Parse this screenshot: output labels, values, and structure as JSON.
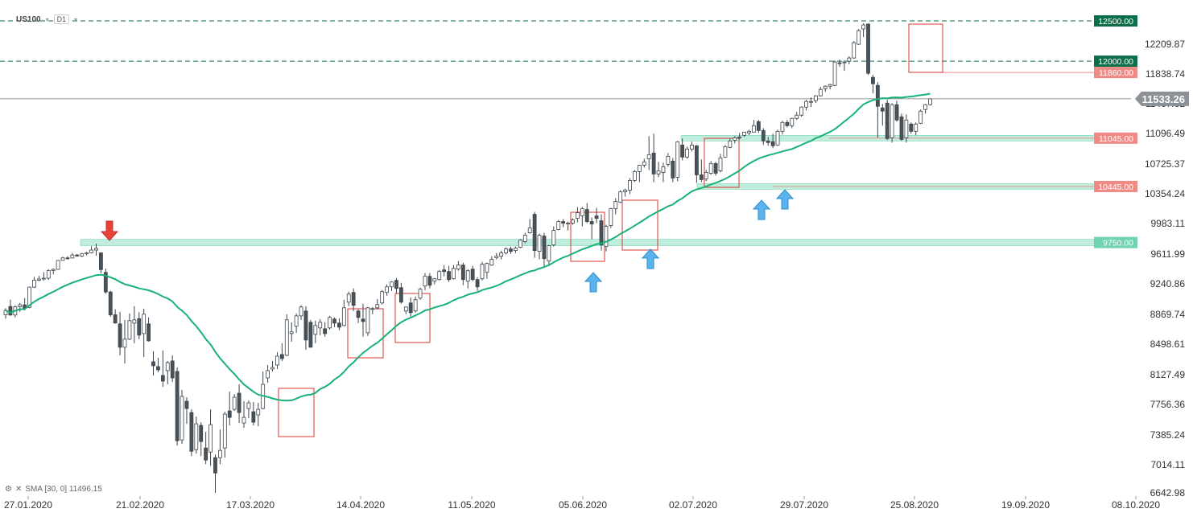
{
  "header": {
    "symbol": "US100",
    "timeframe": "D1"
  },
  "indicator": {
    "label": "SMA [30, 0] 11496.15"
  },
  "chart_data": {
    "type": "candlestick",
    "title": "US100",
    "timeframe": "D1",
    "ylim": [
      6642.98,
      12581.0
    ],
    "x_axis_labels": [
      "27.01.2020",
      "21.02.2020",
      "17.03.2020",
      "14.04.2020",
      "11.05.2020",
      "05.06.2020",
      "02.07.2020",
      "29.07.2020",
      "25.08.2020",
      "19.09.2020",
      "08.10.2020"
    ],
    "y_axis_labels": [
      "12209.87",
      "11838.74",
      "11467.62",
      "11096.49",
      "10725.37",
      "10354.24",
      "9983.11",
      "9611.99",
      "9240.86",
      "8869.74",
      "8498.61",
      "8127.49",
      "7756.36",
      "7385.24",
      "7014.11",
      "6642.98"
    ],
    "current_price": "11533.26",
    "level_labels": [
      {
        "value": "12500.00",
        "color": "#0d6e4a"
      },
      {
        "value": "12000.00",
        "color": "#0d6e4a"
      },
      {
        "value": "11860.00",
        "color": "#ef8a85"
      },
      {
        "value": "11045.00",
        "color": "#ef8a85"
      },
      {
        "value": "10445.00",
        "color": "#ef8a85"
      },
      {
        "value": "9750.00",
        "color": "#6fd3b0"
      }
    ],
    "colors": {
      "bull": "#ffffff",
      "bear": "#4a5259",
      "sma": "#19b276",
      "box": "#d9352f",
      "zone": "#b4ebd8",
      "arrow_up": "#5ab3ec",
      "arrow_down": "#e8433b"
    },
    "sma_period": 30,
    "sma_value": "11496.15",
    "candles": [
      {
        "o": 8853,
        "h": 8935,
        "l": 8805,
        "c": 8908
      },
      {
        "o": 8956,
        "h": 9040,
        "l": 8842,
        "c": 8850
      },
      {
        "o": 8850,
        "h": 8970,
        "l": 8820,
        "c": 8951
      },
      {
        "o": 8952,
        "h": 9001,
        "l": 8890,
        "c": 8977
      },
      {
        "o": 8976,
        "h": 9061,
        "l": 8907,
        "c": 8935
      },
      {
        "o": 8945,
        "h": 9203,
        "l": 8935,
        "c": 9196
      },
      {
        "o": 9196,
        "h": 9324,
        "l": 9186,
        "c": 9283
      },
      {
        "o": 9283,
        "h": 9337,
        "l": 9269,
        "c": 9297
      },
      {
        "o": 9297,
        "h": 9382,
        "l": 9278,
        "c": 9307
      },
      {
        "o": 9307,
        "h": 9419,
        "l": 9287,
        "c": 9401
      },
      {
        "o": 9401,
        "h": 9427,
        "l": 9354,
        "c": 9417
      },
      {
        "o": 9417,
        "h": 9529,
        "l": 9411,
        "c": 9528
      },
      {
        "o": 9528,
        "h": 9573,
        "l": 9528,
        "c": 9559
      },
      {
        "o": 9559,
        "h": 9580,
        "l": 9537,
        "c": 9558
      },
      {
        "o": 9558,
        "h": 9620,
        "l": 9552,
        "c": 9595
      },
      {
        "o": 9595,
        "h": 9608,
        "l": 9574,
        "c": 9582
      },
      {
        "o": 9582,
        "h": 9619,
        "l": 9570,
        "c": 9610
      },
      {
        "o": 9610,
        "h": 9634,
        "l": 9589,
        "c": 9622
      },
      {
        "o": 9623,
        "h": 9704,
        "l": 9615,
        "c": 9656
      },
      {
        "o": 9656,
        "h": 9737,
        "l": 9586,
        "c": 9677
      },
      {
        "o": 9622,
        "h": 9622,
        "l": 9367,
        "c": 9414
      },
      {
        "o": 9379,
        "h": 9427,
        "l": 9114,
        "c": 9136
      },
      {
        "o": 9136,
        "h": 9152,
        "l": 8828,
        "c": 8853
      },
      {
        "o": 8853,
        "h": 8923,
        "l": 8742,
        "c": 8751
      },
      {
        "o": 8740,
        "h": 8890,
        "l": 8350,
        "c": 8450
      },
      {
        "o": 8450,
        "h": 8790,
        "l": 8250,
        "c": 8550
      },
      {
        "o": 8550,
        "h": 8870,
        "l": 8540,
        "c": 8780
      },
      {
        "o": 8750,
        "h": 8960,
        "l": 8500,
        "c": 8790
      },
      {
        "o": 8805,
        "h": 8885,
        "l": 8550,
        "c": 8600
      },
      {
        "o": 8620,
        "h": 8930,
        "l": 8330,
        "c": 8860
      },
      {
        "o": 8740,
        "h": 8820,
        "l": 8520,
        "c": 8530
      },
      {
        "o": 8270,
        "h": 8400,
        "l": 8100,
        "c": 8220
      },
      {
        "o": 8210,
        "h": 8320,
        "l": 8140,
        "c": 8170
      },
      {
        "o": 8100,
        "h": 8410,
        "l": 7960,
        "c": 8030
      },
      {
        "o": 8160,
        "h": 8280,
        "l": 7990,
        "c": 8260
      },
      {
        "o": 8280,
        "h": 8350,
        "l": 8020,
        "c": 8070
      },
      {
        "o": 8150,
        "h": 8200,
        "l": 7230,
        "c": 7290
      },
      {
        "o": 7300,
        "h": 7920,
        "l": 7250,
        "c": 7840
      },
      {
        "o": 7780,
        "h": 7830,
        "l": 7500,
        "c": 7690
      },
      {
        "o": 7640,
        "h": 7680,
        "l": 7100,
        "c": 7160
      },
      {
        "o": 7180,
        "h": 7590,
        "l": 7130,
        "c": 7500
      },
      {
        "o": 7480,
        "h": 7520,
        "l": 7100,
        "c": 7280
      },
      {
        "o": 7200,
        "h": 7400,
        "l": 7000,
        "c": 7050
      },
      {
        "o": 7150,
        "h": 7680,
        "l": 6980,
        "c": 7490
      },
      {
        "o": 7080,
        "h": 7120,
        "l": 6643,
        "c": 6890
      },
      {
        "o": 7080,
        "h": 7430,
        "l": 7000,
        "c": 7170
      },
      {
        "o": 7200,
        "h": 7650,
        "l": 7080,
        "c": 7620
      },
      {
        "o": 7660,
        "h": 7900,
        "l": 7480,
        "c": 7580
      },
      {
        "o": 7680,
        "h": 7870,
        "l": 7660,
        "c": 7830
      },
      {
        "o": 7880,
        "h": 7990,
        "l": 7510,
        "c": 7640
      },
      {
        "o": 7510,
        "h": 7780,
        "l": 7450,
        "c": 7580
      },
      {
        "o": 7690,
        "h": 7790,
        "l": 7570,
        "c": 7760
      },
      {
        "o": 7650,
        "h": 7770,
        "l": 7480,
        "c": 7520
      },
      {
        "o": 7610,
        "h": 7760,
        "l": 7470,
        "c": 7680
      },
      {
        "o": 7690,
        "h": 8150,
        "l": 7680,
        "c": 7990
      },
      {
        "o": 8070,
        "h": 8230,
        "l": 8010,
        "c": 8160
      },
      {
        "o": 8180,
        "h": 8280,
        "l": 8150,
        "c": 8200
      },
      {
        "o": 8230,
        "h": 8390,
        "l": 8180,
        "c": 8340
      },
      {
        "o": 8360,
        "h": 8500,
        "l": 8280,
        "c": 8310
      },
      {
        "o": 8350,
        "h": 8860,
        "l": 8340,
        "c": 8790
      },
      {
        "o": 8620,
        "h": 8760,
        "l": 8520,
        "c": 8640
      },
      {
        "o": 8710,
        "h": 8870,
        "l": 8630,
        "c": 8840
      },
      {
        "o": 8840,
        "h": 8970,
        "l": 8790,
        "c": 8950
      },
      {
        "o": 8900,
        "h": 8960,
        "l": 8420,
        "c": 8540
      },
      {
        "o": 8760,
        "h": 8790,
        "l": 8450,
        "c": 8450
      },
      {
        "o": 8610,
        "h": 8780,
        "l": 8500,
        "c": 8720
      },
      {
        "o": 8690,
        "h": 8800,
        "l": 8600,
        "c": 8760
      },
      {
        "o": 8680,
        "h": 8760,
        "l": 8580,
        "c": 8620
      },
      {
        "o": 8690,
        "h": 8840,
        "l": 8670,
        "c": 8820
      },
      {
        "o": 8800,
        "h": 8820,
        "l": 8700,
        "c": 8750
      },
      {
        "o": 8750,
        "h": 8810,
        "l": 8660,
        "c": 8700
      },
      {
        "o": 8720,
        "h": 9040,
        "l": 8710,
        "c": 8940
      },
      {
        "o": 9010,
        "h": 9140,
        "l": 8960,
        "c": 9110
      },
      {
        "o": 9130,
        "h": 9180,
        "l": 8900,
        "c": 8970
      },
      {
        "o": 8900,
        "h": 8920,
        "l": 8750,
        "c": 8820
      },
      {
        "o": 8800,
        "h": 8990,
        "l": 8580,
        "c": 8770
      },
      {
        "o": 8630,
        "h": 8950,
        "l": 8590,
        "c": 8940
      },
      {
        "o": 8920,
        "h": 8950,
        "l": 8860,
        "c": 8930
      },
      {
        "o": 8940,
        "h": 9050,
        "l": 8920,
        "c": 8980
      },
      {
        "o": 9000,
        "h": 9160,
        "l": 8980,
        "c": 9140
      },
      {
        "o": 9130,
        "h": 9230,
        "l": 9090,
        "c": 9200
      },
      {
        "o": 9200,
        "h": 9270,
        "l": 9150,
        "c": 9260
      },
      {
        "o": 9280,
        "h": 9310,
        "l": 9120,
        "c": 9180
      },
      {
        "o": 9190,
        "h": 9250,
        "l": 8990,
        "c": 9010
      },
      {
        "o": 8900,
        "h": 8950,
        "l": 8860,
        "c": 8950
      },
      {
        "o": 9000,
        "h": 9070,
        "l": 8830,
        "c": 8880
      },
      {
        "o": 8900,
        "h": 9080,
        "l": 8880,
        "c": 9040
      },
      {
        "o": 9060,
        "h": 9190,
        "l": 9040,
        "c": 9170
      },
      {
        "o": 9210,
        "h": 9370,
        "l": 9160,
        "c": 9330
      },
      {
        "o": 9330,
        "h": 9370,
        "l": 9180,
        "c": 9220
      },
      {
        "o": 9270,
        "h": 9310,
        "l": 9230,
        "c": 9300
      },
      {
        "o": 9290,
        "h": 9410,
        "l": 9280,
        "c": 9390
      },
      {
        "o": 9410,
        "h": 9470,
        "l": 9330,
        "c": 9390
      },
      {
        "o": 9390,
        "h": 9460,
        "l": 9260,
        "c": 9290
      },
      {
        "o": 9300,
        "h": 9470,
        "l": 9290,
        "c": 9430
      },
      {
        "o": 9420,
        "h": 9520,
        "l": 9400,
        "c": 9470
      },
      {
        "o": 9470,
        "h": 9500,
        "l": 9220,
        "c": 9290
      },
      {
        "o": 9270,
        "h": 9420,
        "l": 9180,
        "c": 9400
      },
      {
        "o": 9420,
        "h": 9460,
        "l": 9270,
        "c": 9290
      },
      {
        "o": 9290,
        "h": 9320,
        "l": 9150,
        "c": 9200
      },
      {
        "o": 9300,
        "h": 9510,
        "l": 9280,
        "c": 9480
      },
      {
        "o": 9380,
        "h": 9500,
        "l": 9300,
        "c": 9490
      },
      {
        "o": 9470,
        "h": 9580,
        "l": 9460,
        "c": 9540
      },
      {
        "o": 9560,
        "h": 9620,
        "l": 9540,
        "c": 9580
      },
      {
        "o": 9580,
        "h": 9650,
        "l": 9540,
        "c": 9620
      },
      {
        "o": 9620,
        "h": 9690,
        "l": 9600,
        "c": 9670
      },
      {
        "o": 9670,
        "h": 9700,
        "l": 9610,
        "c": 9640
      },
      {
        "o": 9650,
        "h": 9700,
        "l": 9620,
        "c": 9680
      },
      {
        "o": 9690,
        "h": 9790,
        "l": 9680,
        "c": 9780
      },
      {
        "o": 9760,
        "h": 9870,
        "l": 9740,
        "c": 9840
      },
      {
        "o": 9870,
        "h": 10040,
        "l": 9860,
        "c": 9930
      },
      {
        "o": 10100,
        "h": 10130,
        "l": 9560,
        "c": 9650
      },
      {
        "o": 9640,
        "h": 9860,
        "l": 9540,
        "c": 9840
      },
      {
        "o": 9830,
        "h": 9870,
        "l": 9440,
        "c": 9550
      },
      {
        "o": 9520,
        "h": 9720,
        "l": 9460,
        "c": 9710
      },
      {
        "o": 9720,
        "h": 9950,
        "l": 9700,
        "c": 9900
      },
      {
        "o": 9910,
        "h": 10030,
        "l": 9900,
        "c": 10010
      },
      {
        "o": 10010,
        "h": 10040,
        "l": 9940,
        "c": 9990
      },
      {
        "o": 9980,
        "h": 10010,
        "l": 9900,
        "c": 9990
      },
      {
        "o": 9990,
        "h": 10050,
        "l": 9970,
        "c": 10030
      },
      {
        "o": 10050,
        "h": 10190,
        "l": 10000,
        "c": 10120
      },
      {
        "o": 10080,
        "h": 10190,
        "l": 9950,
        "c": 10170
      },
      {
        "o": 10160,
        "h": 10240,
        "l": 9990,
        "c": 10010
      },
      {
        "o": 10010,
        "h": 10060,
        "l": 9790,
        "c": 9980
      },
      {
        "o": 10080,
        "h": 10180,
        "l": 9990,
        "c": 10050
      },
      {
        "o": 10020,
        "h": 10100,
        "l": 9650,
        "c": 9720
      },
      {
        "o": 9700,
        "h": 9970,
        "l": 9640,
        "c": 9950
      },
      {
        "o": 9960,
        "h": 10180,
        "l": 9930,
        "c": 10170
      },
      {
        "o": 10170,
        "h": 10300,
        "l": 10100,
        "c": 10260
      },
      {
        "o": 10250,
        "h": 10400,
        "l": 10240,
        "c": 10380
      },
      {
        "o": 10380,
        "h": 10420,
        "l": 10320,
        "c": 10400
      },
      {
        "o": 10400,
        "h": 10550,
        "l": 10350,
        "c": 10520
      },
      {
        "o": 10520,
        "h": 10650,
        "l": 10500,
        "c": 10630
      },
      {
        "o": 10630,
        "h": 10700,
        "l": 10500,
        "c": 10710
      },
      {
        "o": 10710,
        "h": 10790,
        "l": 10680,
        "c": 10750
      },
      {
        "o": 10790,
        "h": 11070,
        "l": 10650,
        "c": 10840
      },
      {
        "o": 10860,
        "h": 11100,
        "l": 10500,
        "c": 10600
      },
      {
        "o": 10600,
        "h": 10750,
        "l": 10560,
        "c": 10640
      },
      {
        "o": 10620,
        "h": 10740,
        "l": 10500,
        "c": 10690
      },
      {
        "o": 10720,
        "h": 10860,
        "l": 10690,
        "c": 10820
      },
      {
        "o": 10760,
        "h": 10800,
        "l": 10500,
        "c": 10550
      },
      {
        "o": 10560,
        "h": 11010,
        "l": 10510,
        "c": 11000
      },
      {
        "o": 10960,
        "h": 11040,
        "l": 10770,
        "c": 10810
      },
      {
        "o": 10810,
        "h": 10940,
        "l": 10790,
        "c": 10910
      },
      {
        "o": 10910,
        "h": 11000,
        "l": 10880,
        "c": 10960
      },
      {
        "o": 10950,
        "h": 10960,
        "l": 10490,
        "c": 10590
      },
      {
        "o": 10590,
        "h": 10780,
        "l": 10500,
        "c": 10530
      },
      {
        "o": 10540,
        "h": 10650,
        "l": 10510,
        "c": 10620
      },
      {
        "o": 10610,
        "h": 10760,
        "l": 10590,
        "c": 10730
      },
      {
        "o": 10730,
        "h": 10750,
        "l": 10580,
        "c": 10610
      },
      {
        "o": 10640,
        "h": 10850,
        "l": 10620,
        "c": 10800
      },
      {
        "o": 10810,
        "h": 10960,
        "l": 10800,
        "c": 10940
      },
      {
        "o": 10930,
        "h": 11040,
        "l": 10920,
        "c": 11010
      },
      {
        "o": 11020,
        "h": 11070,
        "l": 10980,
        "c": 11050
      },
      {
        "o": 11050,
        "h": 11110,
        "l": 11030,
        "c": 11060
      },
      {
        "o": 11080,
        "h": 11120,
        "l": 11060,
        "c": 11120
      },
      {
        "o": 11110,
        "h": 11150,
        "l": 11080,
        "c": 11130
      },
      {
        "o": 11120,
        "h": 11270,
        "l": 11120,
        "c": 11200
      },
      {
        "o": 11250,
        "h": 11270,
        "l": 11110,
        "c": 11140
      },
      {
        "o": 11140,
        "h": 11170,
        "l": 10960,
        "c": 11010
      },
      {
        "o": 11010,
        "h": 11060,
        "l": 10950,
        "c": 10990
      },
      {
        "o": 11000,
        "h": 11100,
        "l": 10920,
        "c": 10950
      },
      {
        "o": 10960,
        "h": 11150,
        "l": 10950,
        "c": 11130
      },
      {
        "o": 11130,
        "h": 11260,
        "l": 11090,
        "c": 11240
      },
      {
        "o": 11240,
        "h": 11270,
        "l": 11180,
        "c": 11200
      },
      {
        "o": 11200,
        "h": 11300,
        "l": 11170,
        "c": 11290
      },
      {
        "o": 11290,
        "h": 11370,
        "l": 11270,
        "c": 11330
      },
      {
        "o": 11330,
        "h": 11440,
        "l": 11310,
        "c": 11430
      },
      {
        "o": 11430,
        "h": 11520,
        "l": 11390,
        "c": 11500
      },
      {
        "o": 11500,
        "h": 11550,
        "l": 11430,
        "c": 11500
      },
      {
        "o": 11510,
        "h": 11580,
        "l": 11480,
        "c": 11570
      },
      {
        "o": 11570,
        "h": 11680,
        "l": 11560,
        "c": 11650
      },
      {
        "o": 11660,
        "h": 11700,
        "l": 11620,
        "c": 11690
      },
      {
        "o": 11690,
        "h": 11720,
        "l": 11650,
        "c": 11710
      },
      {
        "o": 11700,
        "h": 12010,
        "l": 11690,
        "c": 11990
      },
      {
        "o": 11980,
        "h": 12020,
        "l": 11930,
        "c": 11970
      },
      {
        "o": 11980,
        "h": 12010,
        "l": 11880,
        "c": 11990
      },
      {
        "o": 12000,
        "h": 12060,
        "l": 11960,
        "c": 12040
      },
      {
        "o": 12040,
        "h": 12250,
        "l": 12030,
        "c": 12230
      },
      {
        "o": 12210,
        "h": 12400,
        "l": 12200,
        "c": 12380
      },
      {
        "o": 12400,
        "h": 12470,
        "l": 12300,
        "c": 12450
      },
      {
        "o": 12460,
        "h": 12470,
        "l": 11830,
        "c": 11850
      },
      {
        "o": 11800,
        "h": 11830,
        "l": 11600,
        "c": 11720
      },
      {
        "o": 11700,
        "h": 11740,
        "l": 11050,
        "c": 11440
      },
      {
        "o": 11420,
        "h": 11470,
        "l": 11200,
        "c": 11380
      },
      {
        "o": 11480,
        "h": 11520,
        "l": 11020,
        "c": 11040
      },
      {
        "o": 11050,
        "h": 11480,
        "l": 10990,
        "c": 11460
      },
      {
        "o": 11460,
        "h": 11510,
        "l": 11250,
        "c": 11270
      },
      {
        "o": 11310,
        "h": 11350,
        "l": 11010,
        "c": 11030
      },
      {
        "o": 11050,
        "h": 11340,
        "l": 10990,
        "c": 11270
      },
      {
        "o": 11220,
        "h": 11240,
        "l": 11100,
        "c": 11130
      },
      {
        "o": 11130,
        "h": 11240,
        "l": 11080,
        "c": 11220
      },
      {
        "o": 11230,
        "h": 11400,
        "l": 11220,
        "c": 11380
      },
      {
        "o": 11400,
        "h": 11470,
        "l": 11350,
        "c": 11460
      },
      {
        "o": 11460,
        "h": 11540,
        "l": 11450,
        "c": 11533
      }
    ]
  }
}
